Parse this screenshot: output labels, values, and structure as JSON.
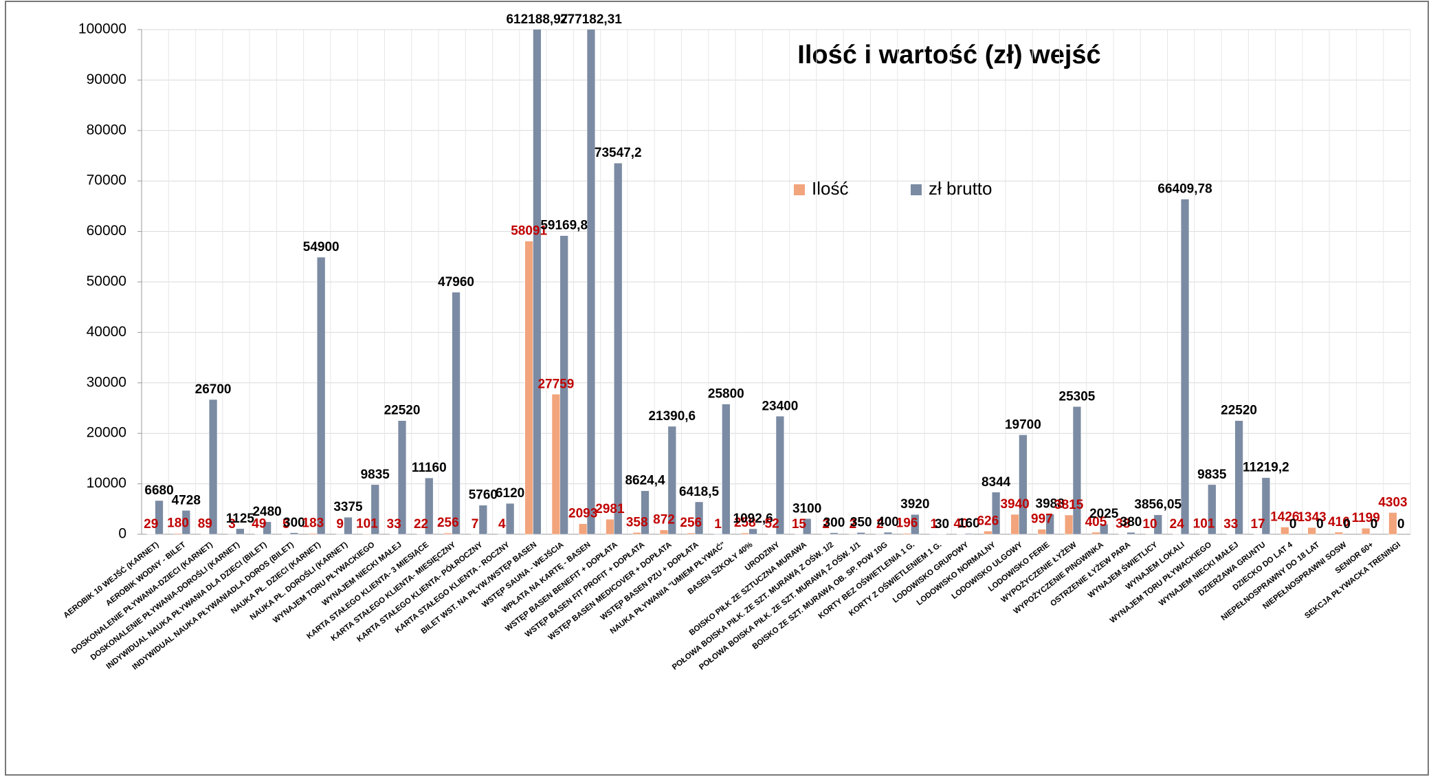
{
  "chart_data": {
    "type": "bar",
    "title": "Ilość i wartość (zł) wejść",
    "categories": [
      "AEROBIK 10 WEJŚĆ (KARNET)",
      "AEROBIK WODNY - BILET",
      "DOSKONALENIE PŁYWANIA-DZIECI (KARNET)",
      "DOSKONALENIE PŁYWANIA-DOROŚLI (KARNET)",
      "INDYWIDUAL NAUKA PŁYWANIA DLA DZIECI (BILET)",
      "INDYWIDUAL NAUKA PŁYWANIADLA DOROS (BILET)",
      "NAUKA PŁ. DZIECI (KARNET)",
      "NAUKA PŁ. DOROŚLI (KARNET)",
      "WYNAJEM TORU PŁYWACKIEGO",
      "WYNAJEM NIECKI MAŁEJ",
      "KARTA STAŁEGO KLIENTA- 3 MIESIĄCE",
      "KARTA STAŁEGO KLIENTA- MIESIĘCZNY",
      "KARTA STAŁEGO KLIENTA- PÓŁROCZNY",
      "KARTA STAŁEGO KLIENTA - ROCZNY",
      "BILET WST. NA PŁYW./WSTĘP BASEN",
      "WSTĘP SAUNA - WEJŚCIA",
      "WPŁATA NA KARTĘ - BASEN",
      "WSTĘP BASEN BENEFIT + DOPŁATA",
      "WSTĘP BASEN FIT PROFIT + DOPŁATA",
      "WSTĘP BASEN MEDICOVER + DOPŁATA",
      "WSTĘP BASEN PZU + DOPŁATA",
      "NAUKA PŁYWANIA \"UMIEM PŁYWAĆ\"",
      "BASEN SZKOŁY 40%",
      "URODZINY",
      "BOISKO PIŁK ZE SZTUCZNA MURAWA",
      "POŁOWA BOISKA PIŁK. ZE SZT. MURAWĄ Z OŚW. 1/2",
      "POŁOWA BOISKA PIŁK. ZE SZT. MURAWĄ Z OŚW. 1/1",
      "BOISKO ZE SZT. MURAWĄ OB. SP. POW 10G",
      "KORTY BEZ OŚWIETLENIA 1 G.",
      "KORTY Z OŚWIETLENIEM 1 G.",
      "LODOWISKO GRUPOWY",
      "LODOWISKO NORMALNY",
      "LODOWISKO ULGOWY",
      "LODOWISKO FERIE",
      "WYPOŻYCZENIE ŁYŻEW",
      "WYPOŻYCZENIE PINGWINKA",
      "OSTRZENIE ŁYŻEW PARA",
      "WYNAJEM ŚWIETLICY",
      "WYNAJEM LOKALI",
      "WYNAJEM TORU PŁYWACKIEGO",
      "WYNAJEM NIECKI MAŁEJ",
      "DZIERŻAWA GRUNTU",
      "DZIECKO DO LAT 4",
      "NIEPEŁNOSPRAWNY DO 18 LAT",
      "NIEPEŁNOSPRAWNI SOSW",
      "SENIOR 60+",
      "SEKCJA PŁYWACKA TRENINGI"
    ],
    "series": [
      {
        "name": "Ilość",
        "color": "#f2a47c",
        "label_color": "#c00000",
        "values": [
          29,
          180,
          89,
          3,
          49,
          5,
          183,
          9,
          101,
          33,
          22,
          256,
          7,
          4,
          58091,
          27759,
          2093,
          2981,
          358,
          872,
          256,
          1,
          258,
          52,
          15,
          2,
          2,
          2,
          196,
          1,
          40,
          626,
          3940,
          997,
          3815,
          405,
          38,
          10,
          24,
          101,
          33,
          17,
          1426,
          1343,
          416,
          1199,
          4303
        ]
      },
      {
        "name": "zł brutto",
        "color": "#7b8ba3",
        "label_color": "#000000",
        "values": [
          6680,
          4728,
          26700,
          1125,
          2480,
          300,
          54900,
          3375,
          9835,
          22520,
          11160,
          47960,
          5760,
          6120,
          612188.97,
          59169.8,
          277182.31,
          73547.2,
          8624.4,
          21390.6,
          6418.5,
          25800,
          1092.6,
          23400,
          3100,
          300,
          350,
          400,
          3920,
          30,
          160,
          8344,
          19700,
          3988,
          25305,
          2025,
          380,
          3856.05,
          66409.78,
          9835,
          22520,
          11219.2,
          0,
          0,
          0,
          0,
          0
        ],
        "value_labels": [
          "6680",
          "4728",
          "26700",
          "1125",
          "2480",
          "300",
          "54900",
          "3375",
          "9835",
          "22520",
          "11160",
          "47960",
          "5760",
          "6120",
          "612188,97",
          "59169,8",
          "277182,31",
          "73547,2",
          "8624,4",
          "21390,6",
          "6418,5",
          "25800",
          "1092,6",
          "23400",
          "3100",
          "300",
          "350",
          "400",
          "3920",
          "30",
          "160",
          "8344",
          "19700",
          "3988",
          "25305",
          "2025",
          "380",
          "3856,05",
          "66409,78",
          "9835",
          "22520",
          "11219,2",
          "0",
          "0",
          "0",
          "0",
          "0"
        ]
      }
    ],
    "ylim": [
      0,
      100000
    ],
    "yticks": [
      0,
      10000,
      20000,
      30000,
      40000,
      50000,
      60000,
      70000,
      80000,
      90000,
      100000
    ],
    "grid": true
  }
}
